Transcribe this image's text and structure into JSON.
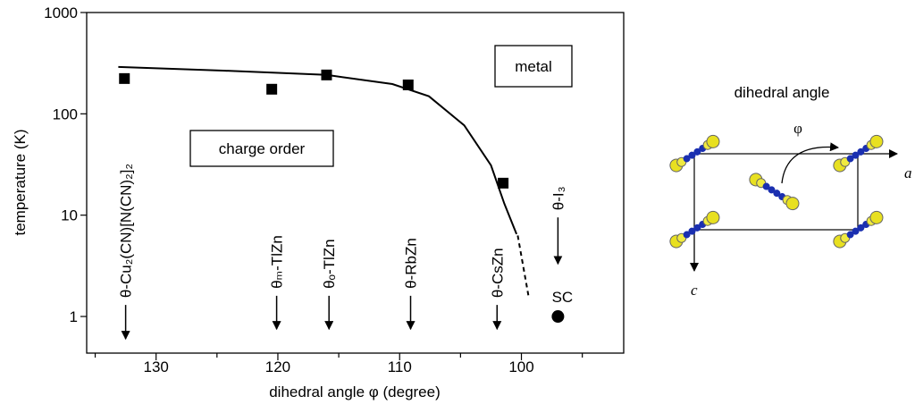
{
  "chart_data": {
    "type": "scatter",
    "x_label": "dihedral angle φ (degree)",
    "y_label": "temperature (K)",
    "xlim": [
      135.7,
      91.6
    ],
    "xticks": [
      130,
      120,
      110,
      100
    ],
    "xminor_ticks": [
      135,
      125,
      115,
      105,
      95
    ],
    "ylim": [
      0.435,
      1000
    ],
    "yticks": [
      1,
      10,
      100,
      1000
    ],
    "log_y": true,
    "square_points": {
      "x": [
        132.6,
        120.5,
        116.0,
        109.3,
        101.5
      ],
      "values": [
        223,
        175,
        242,
        193,
        20.7
      ],
      "color": "#000000"
    },
    "circle_points": {
      "x": [
        97.0
      ],
      "values": [
        1
      ],
      "color": "#000000",
      "label": "SC"
    },
    "curve": {
      "x": [
        133.1,
        124.5,
        116.0,
        110.6,
        107.6,
        104.7,
        102.5,
        101.4,
        100.4
      ],
      "values": [
        290,
        267,
        242,
        197,
        149,
        77,
        31,
        13.0,
        6.5
      ]
    },
    "curve_dashed": {
      "x": [
        100.3,
        99.4
      ],
      "values": [
        6.3,
        1.55
      ]
    },
    "regions": [
      "metal",
      "charge order"
    ],
    "annotations": [
      {
        "text": "θ-Cu₂(CN)[N(CN)₂]₂",
        "x": 132.5,
        "arrow_from": 1.3,
        "arrow_to": 0.6
      },
      {
        "text": "θₘ-TlZn",
        "x": 120.1,
        "arrow_from": 1.6,
        "arrow_to": 0.75
      },
      {
        "text": "θₒ-TlZn",
        "x": 115.8,
        "arrow_from": 1.6,
        "arrow_to": 0.75
      },
      {
        "text": "θ-RbZn",
        "x": 109.1,
        "arrow_from": 1.6,
        "arrow_to": 0.75
      },
      {
        "text": "θ-CsZn",
        "x": 102.0,
        "arrow_from": 1.3,
        "arrow_to": 0.75
      },
      {
        "text": "θ-I₃",
        "x": 97.0,
        "arrow_from": 9.5,
        "arrow_to": 3.3
      }
    ]
  },
  "diagram": {
    "title": "dihedral angle",
    "angle": "φ",
    "axis_a": "a",
    "axis_c": "c"
  }
}
